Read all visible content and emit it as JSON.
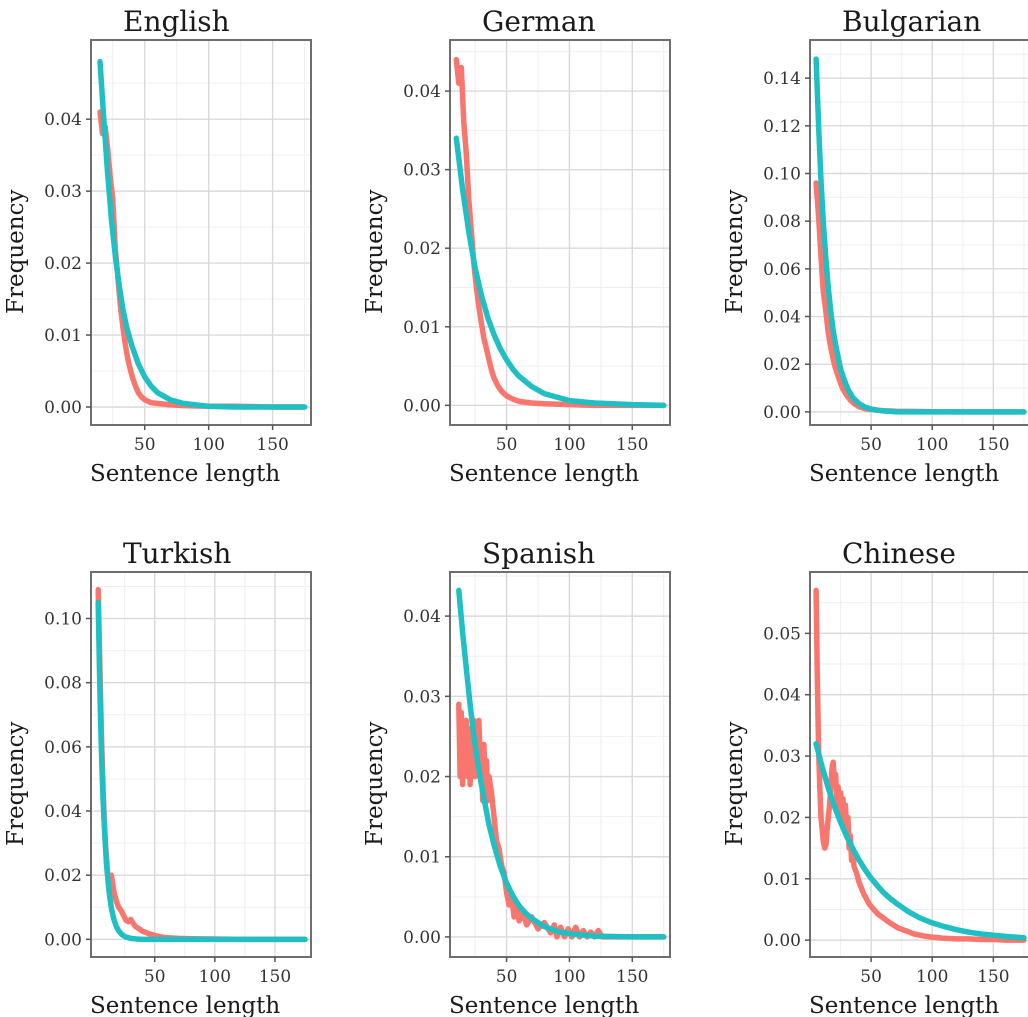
{
  "chart_data": [
    {
      "type": "line",
      "title": "English",
      "xlabel": "Sentence length",
      "ylabel": "Frequency",
      "xlim": [
        8,
        180
      ],
      "ylim": [
        -0.0025,
        0.051
      ],
      "xticks": [
        50,
        100,
        150
      ],
      "yticks": [
        0,
        0.01,
        0.02,
        0.03,
        0.04
      ],
      "ytick_labels": [
        "0.00",
        "0.01",
        "0.02",
        "0.03",
        "0.04"
      ],
      "grid": true,
      "series": [
        {
          "color": "#F8766D",
          "x": [
            15,
            17,
            19,
            21,
            23,
            25,
            27,
            29,
            31,
            33,
            35,
            37,
            39,
            41,
            43,
            45,
            47,
            50,
            55,
            60,
            70,
            80,
            100,
            120,
            150,
            175
          ],
          "y": [
            0.041,
            0.038,
            0.039,
            0.036,
            0.032,
            0.029,
            0.022,
            0.018,
            0.014,
            0.011,
            0.0085,
            0.0065,
            0.005,
            0.0038,
            0.0028,
            0.002,
            0.0015,
            0.001,
            0.0006,
            0.0005,
            0.0003,
            0.0002,
            0.0001,
            0.0001,
            0.0,
            0.0
          ]
        },
        {
          "color": "#1FBFC3",
          "x": [
            15,
            18,
            21,
            24,
            27,
            30,
            33,
            36,
            40,
            45,
            50,
            55,
            60,
            70,
            80,
            100,
            120,
            150,
            175
          ],
          "y": [
            0.048,
            0.04,
            0.0325,
            0.026,
            0.021,
            0.017,
            0.0135,
            0.011,
            0.0085,
            0.006,
            0.0042,
            0.0029,
            0.002,
            0.001,
            0.0005,
            0.0001,
            0.0,
            0.0,
            0.0
          ]
        }
      ]
    },
    {
      "type": "line",
      "title": "German",
      "xlabel": "Sentence length",
      "ylabel": "Frequency",
      "xlim": [
        5,
        180
      ],
      "ylim": [
        -0.0025,
        0.0465
      ],
      "xticks": [
        50,
        100,
        150
      ],
      "yticks": [
        0,
        0.01,
        0.02,
        0.03,
        0.04
      ],
      "ytick_labels": [
        "0.00",
        "0.01",
        "0.02",
        "0.03",
        "0.04"
      ],
      "grid": true,
      "series": [
        {
          "color": "#F8766D",
          "x": [
            10,
            12,
            14,
            16,
            18,
            20,
            22,
            24,
            26,
            28,
            30,
            32,
            34,
            36,
            38,
            40,
            43,
            46,
            50,
            55,
            60,
            70,
            80,
            100,
            120,
            150,
            175
          ],
          "y": [
            0.044,
            0.041,
            0.043,
            0.036,
            0.032,
            0.026,
            0.022,
            0.018,
            0.015,
            0.0125,
            0.0105,
            0.0085,
            0.0072,
            0.0058,
            0.0045,
            0.0035,
            0.0025,
            0.0018,
            0.0012,
            0.0008,
            0.0005,
            0.0003,
            0.0002,
            0.0001,
            0.0,
            0.0,
            0.0
          ]
        },
        {
          "color": "#1FBFC3",
          "x": [
            10,
            15,
            20,
            25,
            30,
            35,
            40,
            45,
            50,
            55,
            60,
            70,
            80,
            100,
            120,
            150,
            175
          ],
          "y": [
            0.034,
            0.0275,
            0.022,
            0.0175,
            0.014,
            0.0112,
            0.009,
            0.0072,
            0.0058,
            0.0046,
            0.0037,
            0.0024,
            0.0015,
            0.0006,
            0.0003,
            0.0001,
            0.0
          ]
        }
      ]
    },
    {
      "type": "line",
      "title": "Bulgarian",
      "xlabel": "Sentence length",
      "ylabel": "Frequency",
      "xlim": [
        0,
        180
      ],
      "ylim": [
        -0.0055,
        0.156
      ],
      "xticks": [
        50,
        100,
        150
      ],
      "yticks": [
        0,
        0.02,
        0.04,
        0.06,
        0.08,
        0.1,
        0.12,
        0.14
      ],
      "ytick_labels": [
        "0.00",
        "0.02",
        "0.04",
        "0.06",
        "0.08",
        "0.10",
        "0.12",
        "0.14"
      ],
      "grid": true,
      "series": [
        {
          "color": "#F8766D",
          "x": [
            5,
            7,
            9,
            11,
            13,
            15,
            17,
            19,
            21,
            23,
            25,
            27,
            30,
            33,
            36,
            40,
            45,
            50,
            60,
            70,
            80,
            100,
            120,
            150,
            175
          ],
          "y": [
            0.096,
            0.082,
            0.065,
            0.05,
            0.042,
            0.033,
            0.027,
            0.022,
            0.018,
            0.015,
            0.012,
            0.0095,
            0.007,
            0.005,
            0.0035,
            0.0022,
            0.0014,
            0.001,
            0.0005,
            0.0003,
            0.0002,
            0.0001,
            0.0,
            0.0,
            0.0
          ]
        },
        {
          "color": "#1FBFC3",
          "x": [
            5,
            7,
            9,
            11,
            13,
            15,
            17,
            19,
            21,
            23,
            25,
            28,
            31,
            35,
            40,
            45,
            50,
            55,
            60,
            70,
            80,
            100,
            120,
            150,
            175
          ],
          "y": [
            0.148,
            0.12,
            0.097,
            0.079,
            0.064,
            0.052,
            0.042,
            0.034,
            0.028,
            0.023,
            0.018,
            0.0135,
            0.0095,
            0.006,
            0.0035,
            0.002,
            0.0012,
            0.0007,
            0.0004,
            0.0001,
            0.0,
            0.0,
            0.0,
            0.0,
            0.0
          ]
        }
      ]
    },
    {
      "type": "line",
      "title": "Turkish",
      "xlabel": "Sentence length",
      "ylabel": "Frequency",
      "xlim": [
        -3,
        180
      ],
      "ylim": [
        -0.0055,
        0.1145
      ],
      "xticks": [
        50,
        100,
        150
      ],
      "yticks": [
        0,
        0.02,
        0.04,
        0.06,
        0.08,
        0.1
      ],
      "ytick_labels": [
        "0.00",
        "0.02",
        "0.04",
        "0.06",
        "0.08",
        "0.10"
      ],
      "grid": true,
      "series": [
        {
          "color": "#F8766D",
          "x": [
            3,
            4,
            5,
            6,
            7,
            8,
            9,
            10,
            11,
            12,
            14,
            16,
            18,
            20,
            22,
            24,
            26,
            28,
            30,
            32,
            34,
            36,
            38,
            40,
            45,
            50,
            55,
            60,
            70,
            80,
            100,
            120,
            150,
            175
          ],
          "y": [
            0.109,
            0.092,
            0.075,
            0.06,
            0.048,
            0.038,
            0.03,
            0.025,
            0.02,
            0.018,
            0.02,
            0.015,
            0.012,
            0.01,
            0.009,
            0.0075,
            0.006,
            0.0055,
            0.0062,
            0.005,
            0.004,
            0.0035,
            0.003,
            0.0025,
            0.0018,
            0.0012,
            0.0008,
            0.0005,
            0.0003,
            0.0002,
            0.0001,
            0.0,
            0.0,
            0.0
          ]
        },
        {
          "color": "#1FBFC3",
          "x": [
            3,
            4,
            5,
            6,
            7,
            8,
            9,
            10,
            12,
            14,
            16,
            18,
            20,
            23,
            26,
            30,
            35,
            40,
            50,
            60,
            80,
            100,
            120,
            150,
            175
          ],
          "y": [
            0.105,
            0.085,
            0.068,
            0.055,
            0.044,
            0.036,
            0.029,
            0.023,
            0.015,
            0.0097,
            0.0063,
            0.0041,
            0.0026,
            0.0014,
            0.0007,
            0.0003,
            0.0001,
            0.0,
            0.0,
            0.0,
            0.0,
            0.0,
            0.0,
            0.0,
            0.0
          ]
        }
      ]
    },
    {
      "type": "line",
      "title": "Spanish",
      "xlabel": "Sentence length",
      "ylabel": "Frequency",
      "xlim": [
        5,
        180
      ],
      "ylim": [
        -0.0025,
        0.0455
      ],
      "xticks": [
        50,
        100,
        150
      ],
      "yticks": [
        0,
        0.01,
        0.02,
        0.03,
        0.04
      ],
      "ytick_labels": [
        "0.00",
        "0.01",
        "0.02",
        "0.03",
        "0.04"
      ],
      "grid": true,
      "series": [
        {
          "color": "#F8766D",
          "x": [
            12,
            13,
            14,
            15,
            16,
            17,
            18,
            19,
            20,
            21,
            22,
            23,
            24,
            25,
            26,
            27,
            28,
            29,
            30,
            31,
            32,
            33,
            34,
            35,
            36,
            38,
            40,
            42,
            44,
            46,
            48,
            50,
            52,
            54,
            56,
            58,
            60,
            63,
            66,
            70,
            75,
            80,
            85,
            88,
            90,
            93,
            96,
            99,
            102,
            105,
            108,
            111,
            114,
            117,
            120,
            123,
            126,
            130,
            140,
            150,
            175
          ],
          "y": [
            0.029,
            0.02,
            0.028,
            0.019,
            0.026,
            0.021,
            0.027,
            0.02,
            0.026,
            0.019,
            0.024,
            0.021,
            0.027,
            0.02,
            0.025,
            0.021,
            0.027,
            0.022,
            0.023,
            0.017,
            0.024,
            0.019,
            0.022,
            0.017,
            0.02,
            0.018,
            0.015,
            0.012,
            0.011,
            0.009,
            0.008,
            0.0055,
            0.004,
            0.005,
            0.0025,
            0.004,
            0.002,
            0.003,
            0.0015,
            0.0025,
            0.001,
            0.0018,
            0.0005,
            0.0015,
            0.0,
            0.0012,
            0.0,
            0.001,
            0.0,
            0.0012,
            0.0,
            0.0008,
            0.0,
            0.0006,
            0.0,
            0.0008,
            0.0,
            0.0,
            0.0,
            0.0,
            0.0
          ]
        },
        {
          "color": "#1FBFC3",
          "x": [
            12,
            15,
            18,
            21,
            24,
            27,
            30,
            33,
            36,
            40,
            45,
            50,
            55,
            60,
            65,
            70,
            80,
            90,
            100,
            120,
            150,
            175
          ],
          "y": [
            0.0432,
            0.038,
            0.0335,
            0.029,
            0.025,
            0.0218,
            0.019,
            0.0165,
            0.014,
            0.0115,
            0.0088,
            0.0067,
            0.0051,
            0.0039,
            0.003,
            0.0023,
            0.0013,
            0.0007,
            0.0004,
            0.0001,
            0.0,
            0.0
          ]
        }
      ]
    },
    {
      "type": "line",
      "title": "Chinese",
      "xlabel": "Sentence length",
      "ylabel": "Frequency",
      "xlim": [
        0,
        180
      ],
      "ylim": [
        -0.00275,
        0.06
      ],
      "xticks": [
        50,
        100,
        150
      ],
      "yticks": [
        0,
        0.01,
        0.02,
        0.03,
        0.04,
        0.05
      ],
      "ytick_labels": [
        "0.00",
        "0.01",
        "0.02",
        "0.03",
        "0.04",
        "0.05"
      ],
      "grid": true,
      "series": [
        {
          "color": "#F8766D",
          "x": [
            5,
            6,
            7,
            8,
            9,
            10,
            11,
            12,
            13,
            14,
            15,
            16,
            17,
            18,
            19,
            20,
            21,
            22,
            23,
            24,
            25,
            26,
            27,
            28,
            29,
            30,
            31,
            32,
            33,
            34,
            35,
            36,
            38,
            40,
            42,
            44,
            46,
            48,
            50,
            53,
            56,
            60,
            64,
            68,
            72,
            76,
            80,
            85,
            90,
            95,
            100,
            110,
            120,
            130,
            140,
            150,
            160,
            175
          ],
          "y": [
            0.057,
            0.043,
            0.031,
            0.025,
            0.02,
            0.018,
            0.016,
            0.015,
            0.0155,
            0.018,
            0.02,
            0.022,
            0.025,
            0.028,
            0.029,
            0.026,
            0.027,
            0.022,
            0.025,
            0.021,
            0.024,
            0.02,
            0.023,
            0.019,
            0.022,
            0.017,
            0.02,
            0.015,
            0.017,
            0.013,
            0.015,
            0.012,
            0.011,
            0.0095,
            0.0085,
            0.0075,
            0.0068,
            0.006,
            0.0055,
            0.0048,
            0.0042,
            0.0036,
            0.003,
            0.0025,
            0.002,
            0.0017,
            0.0014,
            0.001,
            0.0008,
            0.0006,
            0.0005,
            0.0003,
            0.0002,
            0.0002,
            0.0001,
            0.0001,
            0.0,
            0.0
          ]
        },
        {
          "color": "#1FBFC3",
          "x": [
            5,
            10,
            15,
            20,
            25,
            30,
            35,
            40,
            45,
            50,
            55,
            60,
            65,
            70,
            80,
            90,
            100,
            110,
            120,
            130,
            140,
            150,
            160,
            175
          ],
          "y": [
            0.032,
            0.0282,
            0.0248,
            0.0218,
            0.0192,
            0.0169,
            0.0149,
            0.0131,
            0.0115,
            0.0101,
            0.0089,
            0.0078,
            0.0069,
            0.0061,
            0.0047,
            0.0036,
            0.0028,
            0.0022,
            0.0017,
            0.0013,
            0.001,
            0.0008,
            0.0006,
            0.0004
          ]
        }
      ]
    }
  ]
}
